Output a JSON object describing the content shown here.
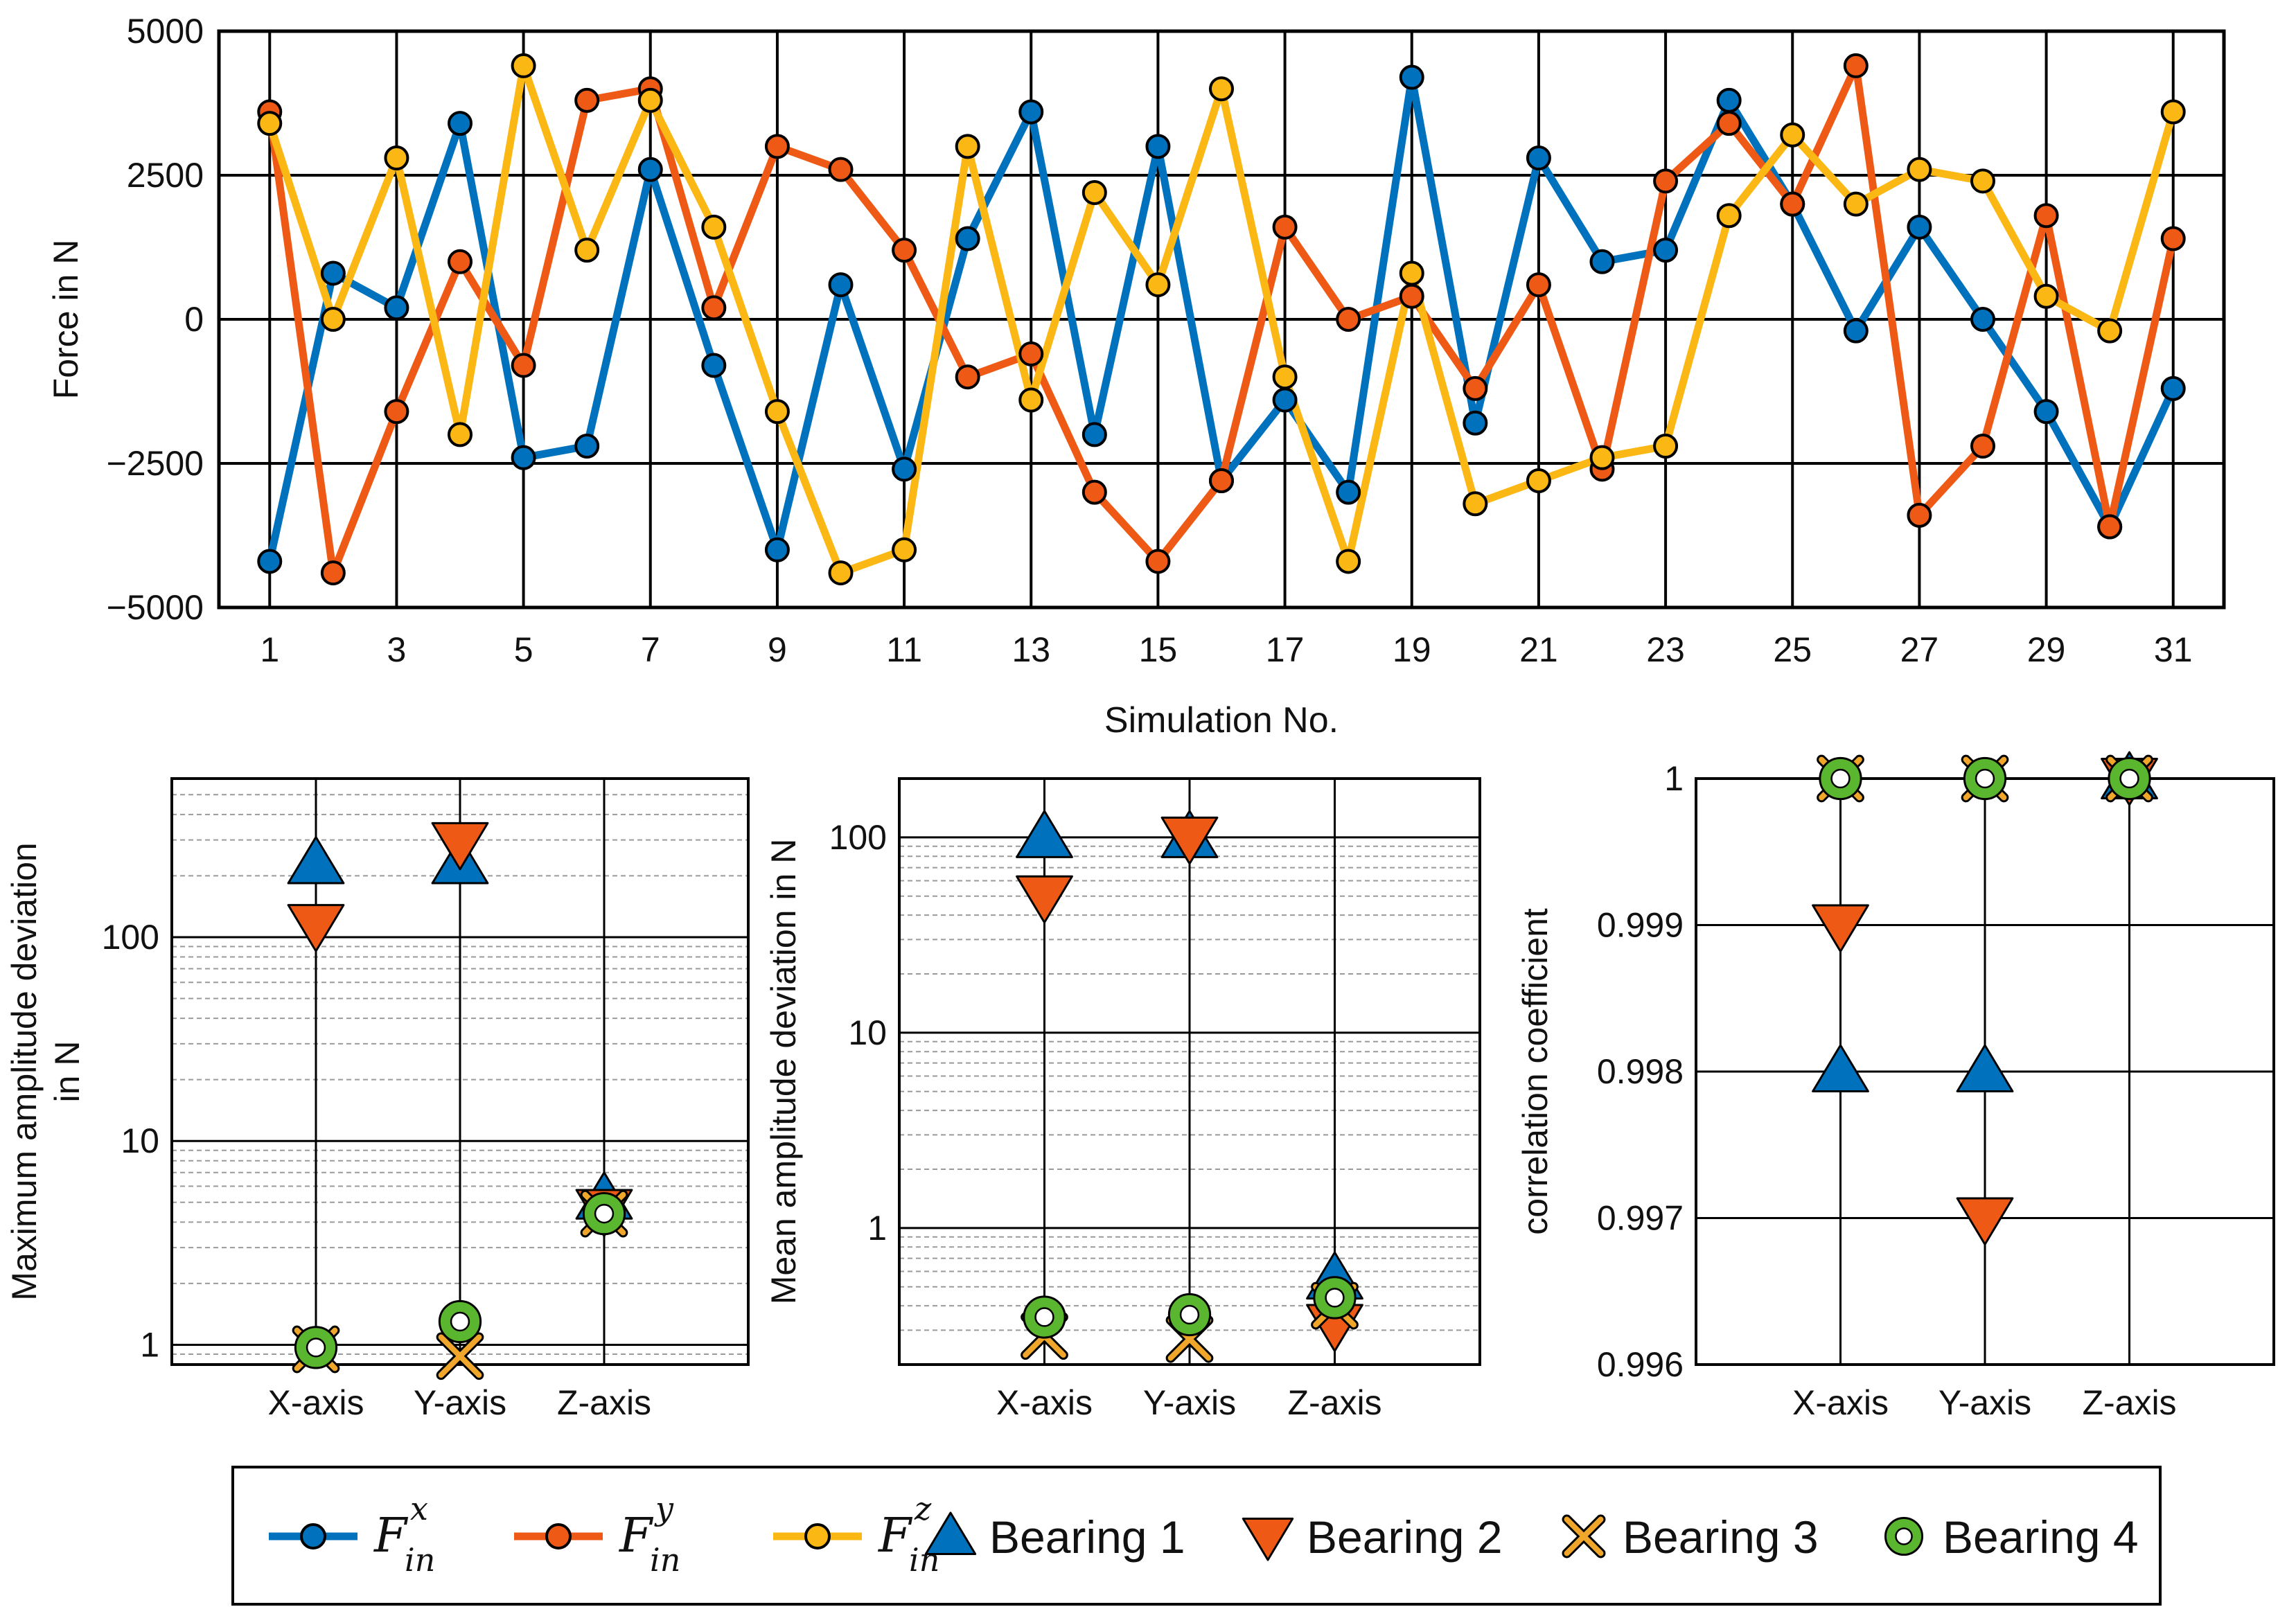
{
  "colors": {
    "fx": "#0072BD",
    "fy": "#EE5A16",
    "fz": "#FBB714",
    "bearing1": "#0072BD",
    "bearing2": "#EE5A16",
    "bearing3": "#F0A62A",
    "bearing4": "#5AB52F"
  },
  "chart_data": [
    {
      "type": "line",
      "id": "force",
      "xlabel": "Simulation No.",
      "ylabel": "Force in N",
      "xlim": [
        0.2,
        31.8
      ],
      "ylim": [
        -5000,
        5000
      ],
      "yticks": [
        -5000,
        -2500,
        0,
        2500,
        5000
      ],
      "ytick_labels": [
        "−5000",
        "−2500",
        "0",
        "2500",
        "5000"
      ],
      "xticks": [
        1,
        3,
        5,
        7,
        9,
        11,
        13,
        15,
        17,
        19,
        21,
        23,
        25,
        27,
        29,
        31
      ],
      "xtick_labels": [
        "1",
        "3",
        "5",
        "7",
        "9",
        "11",
        "13",
        "15",
        "17",
        "19",
        "21",
        "23",
        "25",
        "27",
        "29",
        "31"
      ],
      "grid": true,
      "x": [
        1,
        2,
        3,
        4,
        5,
        6,
        7,
        8,
        9,
        10,
        11,
        12,
        13,
        14,
        15,
        16,
        17,
        18,
        19,
        20,
        21,
        22,
        23,
        24,
        25,
        26,
        27,
        28,
        29,
        30,
        31
      ],
      "series": [
        {
          "name": "F_in^x",
          "color_key": "fx",
          "values": [
            -4200,
            800,
            200,
            3400,
            -2400,
            -2200,
            2600,
            -800,
            -4000,
            600,
            -2600,
            1400,
            3600,
            -2000,
            3000,
            -2800,
            -1400,
            -3000,
            4200,
            -1800,
            2800,
            1000,
            1200,
            3800,
            2000,
            -200,
            1600,
            0,
            -1600,
            -3600,
            -1200
          ]
        },
        {
          "name": "F_in^y",
          "color_key": "fy",
          "values": [
            3600,
            -4400,
            -1600,
            1000,
            -800,
            3800,
            4000,
            200,
            3000,
            2600,
            1200,
            -1000,
            -600,
            -3000,
            -4200,
            -2800,
            1600,
            0,
            400,
            -1200,
            600,
            -2600,
            2400,
            3400,
            2000,
            4400,
            -3400,
            -2200,
            1800,
            -3600,
            1400
          ]
        },
        {
          "name": "F_in^z",
          "color_key": "fz",
          "values": [
            3400,
            0,
            2800,
            -2000,
            4400,
            1200,
            3800,
            1600,
            -1600,
            -4400,
            -4000,
            3000,
            -1400,
            2200,
            600,
            4000,
            -1000,
            -4200,
            800,
            -3200,
            -2800,
            -2400,
            -2200,
            1800,
            3200,
            2000,
            2600,
            2400,
            400,
            -200,
            3600
          ]
        }
      ]
    },
    {
      "type": "scatter",
      "id": "max_dev",
      "yscale": "log",
      "ylabel": [
        "Maximum amplitude deviation",
        "in N"
      ],
      "ylim": [
        0.8,
        600
      ],
      "yticks": [
        1,
        10,
        100
      ],
      "ytick_labels": [
        "1",
        "10",
        "100"
      ],
      "categories": [
        "X-axis",
        "Y-axis",
        "Z-axis"
      ],
      "series": [
        {
          "name": "Bearing 1",
          "marker": "triangle-up",
          "values": [
            230,
            230,
            5.2
          ]
        },
        {
          "name": "Bearing 2",
          "marker": "triangle-down",
          "values": [
            115,
            290,
            4.6
          ]
        },
        {
          "name": "Bearing 3",
          "marker": "x",
          "values": [
            0.95,
            0.88,
            4.4
          ]
        },
        {
          "name": "Bearing 4",
          "marker": "circle",
          "values": [
            0.97,
            1.3,
            4.4
          ]
        }
      ]
    },
    {
      "type": "scatter",
      "id": "mean_dev",
      "yscale": "log",
      "ylabel": [
        "Mean amplitude deviation in N"
      ],
      "ylim": [
        0.2,
        200
      ],
      "yticks": [
        1,
        10,
        100
      ],
      "ytick_labels": [
        "1",
        "10",
        "100"
      ],
      "categories": [
        "X-axis",
        "Y-axis",
        "Z-axis"
      ],
      "series": [
        {
          "name": "Bearing 1",
          "marker": "triangle-up",
          "values": [
            100,
            100,
            0.55
          ]
        },
        {
          "name": "Bearing 2",
          "marker": "triangle-down",
          "values": [
            50,
            100,
            0.32
          ]
        },
        {
          "name": "Bearing 3",
          "marker": "x",
          "values": [
            0.28,
            0.27,
            0.4
          ]
        },
        {
          "name": "Bearing 4",
          "marker": "circle",
          "values": [
            0.35,
            0.36,
            0.44
          ]
        }
      ]
    },
    {
      "type": "scatter",
      "id": "corr",
      "yscale": "linear",
      "ylabel": [
        "correlation coefficient"
      ],
      "ylim": [
        0.996,
        1.0
      ],
      "yticks": [
        0.996,
        0.997,
        0.998,
        0.999,
        1.0
      ],
      "ytick_labels": [
        "0.996",
        "0.997",
        "0.998",
        "0.999",
        "1"
      ],
      "categories": [
        "X-axis",
        "Y-axis",
        "Z-axis"
      ],
      "series": [
        {
          "name": "Bearing 1",
          "marker": "triangle-up",
          "values": [
            0.998,
            0.998,
            1.0
          ]
        },
        {
          "name": "Bearing 2",
          "marker": "triangle-down",
          "values": [
            0.999,
            0.997,
            1.0
          ]
        },
        {
          "name": "Bearing 3",
          "marker": "x",
          "values": [
            1.0,
            1.0,
            1.0
          ]
        },
        {
          "name": "Bearing 4",
          "marker": "circle",
          "values": [
            1.0,
            1.0,
            1.0
          ]
        }
      ]
    }
  ],
  "legend": {
    "items": [
      {
        "kind": "line",
        "color_key": "fx",
        "symbol": "F",
        "sup": "x",
        "sub": "in"
      },
      {
        "kind": "line",
        "color_key": "fy",
        "symbol": "F",
        "sup": "y",
        "sub": "in"
      },
      {
        "kind": "line",
        "color_key": "fz",
        "symbol": "F",
        "sup": "z",
        "sub": "in"
      },
      {
        "kind": "marker",
        "marker": "triangle-up",
        "color_key": "bearing1",
        "label": "Bearing 1"
      },
      {
        "kind": "marker",
        "marker": "triangle-down",
        "color_key": "bearing2",
        "label": "Bearing 2"
      },
      {
        "kind": "marker",
        "marker": "x",
        "color_key": "bearing3",
        "label": "Bearing 3"
      },
      {
        "kind": "marker",
        "marker": "circle",
        "color_key": "bearing4",
        "label": "Bearing 4"
      }
    ]
  }
}
